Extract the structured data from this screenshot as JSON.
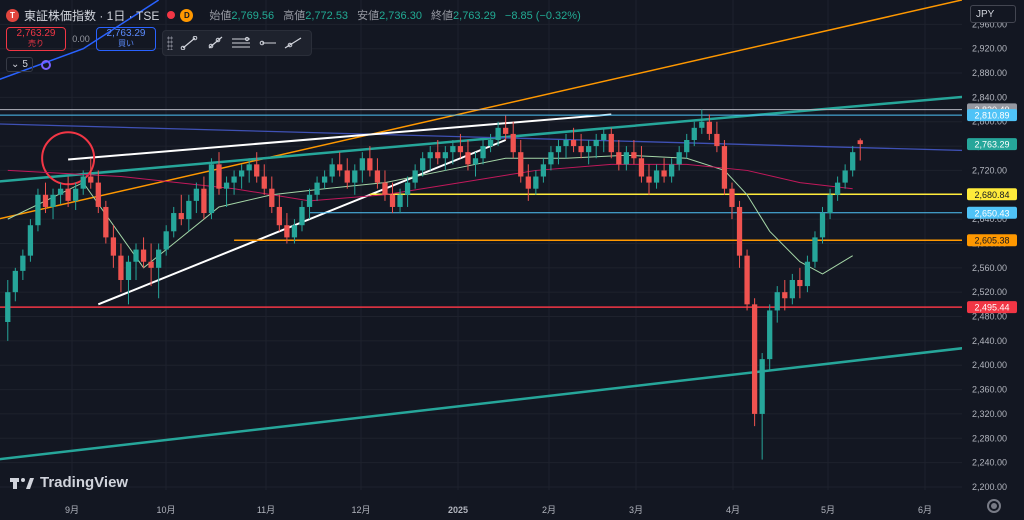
{
  "header": {
    "symbol": "東証株価指数 · 1日 · TSE",
    "open_label": "始値",
    "open": "2,769.56",
    "high_label": "高値",
    "high": "2,772.53",
    "low_label": "安値",
    "low": "2,736.30",
    "close_label": "終値",
    "close": "2,763.29",
    "change": "−8.85 (−0.32%)",
    "badge": "D",
    "symbol_icon": "T"
  },
  "trade": {
    "sell_price": "2,763.29",
    "sell_label": "売り",
    "spread": "0.00",
    "buy_price": "2,763.29",
    "buy_label": "買い"
  },
  "indicators": {
    "count": "5"
  },
  "currency": "JPY",
  "logo": "TradingView",
  "icons": {
    "symbol": "symbol-logo-icon",
    "status": "market-status-icon",
    "dropdown": "chevron-down-icon",
    "indicator": "indicator-icon",
    "gear": "gear-icon",
    "tools": [
      "trend-line-icon",
      "ray-icon",
      "extended-line-icon",
      "parallel-channel-icon",
      "horizontal-ray-icon",
      "horizontal-line-icon"
    ]
  },
  "colors": {
    "background": "#131722",
    "up": "#26a69a",
    "down": "#ef5350",
    "grid": "#363a45"
  },
  "chart_data": {
    "type": "candlestick",
    "ylim": [
      2195,
      3000
    ],
    "y_ticks": [
      2200,
      2240,
      2280,
      2320,
      2360,
      2400,
      2440,
      2480,
      2520,
      2560,
      2600,
      2640,
      2680,
      2720,
      2760,
      2800,
      2840,
      2880,
      2920,
      2960
    ],
    "x_labels": [
      "9月",
      "10月",
      "11月",
      "12月",
      "2025",
      "2月",
      "3月",
      "4月",
      "5月",
      "6月"
    ],
    "price_labels": [
      {
        "value": 2820.4,
        "text": "2,820.40",
        "color": "#9598a1"
      },
      {
        "value": 2810.89,
        "text": "2,810.89",
        "color": "#4fc3f7"
      },
      {
        "value": 2763.29,
        "text": "2,763.29",
        "color": "#26a69a"
      },
      {
        "value": 2680.84,
        "text": "2,680.84",
        "color": "#ffeb3b"
      },
      {
        "value": 2650.43,
        "text": "2,650.43",
        "color": "#4fc3f7"
      },
      {
        "value": 2605.38,
        "text": "2,605.38",
        "color": "#ff9800"
      },
      {
        "value": 2495.44,
        "text": "2,495.44",
        "color": "#f23645"
      }
    ],
    "candles": [
      [
        2471,
        2540,
        2440,
        2520
      ],
      [
        2520,
        2560,
        2505,
        2555
      ],
      [
        2555,
        2590,
        2540,
        2580
      ],
      [
        2580,
        2640,
        2570,
        2630
      ],
      [
        2630,
        2690,
        2620,
        2680
      ],
      [
        2680,
        2700,
        2650,
        2660
      ],
      [
        2660,
        2690,
        2640,
        2680
      ],
      [
        2680,
        2700,
        2665,
        2690
      ],
      [
        2690,
        2710,
        2660,
        2670
      ],
      [
        2670,
        2700,
        2655,
        2690
      ],
      [
        2690,
        2720,
        2680,
        2710
      ],
      [
        2710,
        2740,
        2690,
        2700
      ],
      [
        2700,
        2720,
        2650,
        2660
      ],
      [
        2660,
        2670,
        2600,
        2610
      ],
      [
        2610,
        2630,
        2560,
        2580
      ],
      [
        2580,
        2600,
        2520,
        2540
      ],
      [
        2540,
        2580,
        2500,
        2570
      ],
      [
        2570,
        2600,
        2540,
        2590
      ],
      [
        2590,
        2610,
        2560,
        2570
      ],
      [
        2570,
        2600,
        2530,
        2560
      ],
      [
        2560,
        2600,
        2510,
        2590
      ],
      [
        2590,
        2630,
        2580,
        2620
      ],
      [
        2620,
        2660,
        2610,
        2650
      ],
      [
        2650,
        2680,
        2630,
        2640
      ],
      [
        2640,
        2680,
        2620,
        2670
      ],
      [
        2670,
        2700,
        2650,
        2690
      ],
      [
        2690,
        2710,
        2640,
        2650
      ],
      [
        2650,
        2740,
        2640,
        2730
      ],
      [
        2730,
        2750,
        2680,
        2690
      ],
      [
        2690,
        2710,
        2660,
        2700
      ],
      [
        2700,
        2720,
        2680,
        2710
      ],
      [
        2710,
        2730,
        2690,
        2720
      ],
      [
        2720,
        2740,
        2700,
        2730
      ],
      [
        2730,
        2750,
        2700,
        2710
      ],
      [
        2710,
        2730,
        2680,
        2690
      ],
      [
        2690,
        2710,
        2650,
        2660
      ],
      [
        2660,
        2680,
        2620,
        2630
      ],
      [
        2630,
        2650,
        2600,
        2610
      ],
      [
        2610,
        2640,
        2600,
        2630
      ],
      [
        2630,
        2670,
        2620,
        2660
      ],
      [
        2660,
        2690,
        2640,
        2680
      ],
      [
        2680,
        2710,
        2670,
        2700
      ],
      [
        2700,
        2720,
        2690,
        2710
      ],
      [
        2710,
        2740,
        2700,
        2730
      ],
      [
        2730,
        2750,
        2710,
        2720
      ],
      [
        2720,
        2740,
        2690,
        2700
      ],
      [
        2700,
        2730,
        2680,
        2720
      ],
      [
        2720,
        2750,
        2700,
        2740
      ],
      [
        2740,
        2760,
        2710,
        2720
      ],
      [
        2720,
        2740,
        2690,
        2700
      ],
      [
        2700,
        2720,
        2670,
        2680
      ],
      [
        2680,
        2700,
        2650,
        2660
      ],
      [
        2660,
        2690,
        2650,
        2680
      ],
      [
        2680,
        2710,
        2660,
        2700
      ],
      [
        2700,
        2730,
        2690,
        2720
      ],
      [
        2720,
        2750,
        2710,
        2740
      ],
      [
        2740,
        2760,
        2720,
        2750
      ],
      [
        2750,
        2770,
        2730,
        2740
      ],
      [
        2740,
        2760,
        2720,
        2750
      ],
      [
        2750,
        2770,
        2730,
        2760
      ],
      [
        2760,
        2780,
        2740,
        2750
      ],
      [
        2750,
        2770,
        2720,
        2730
      ],
      [
        2730,
        2750,
        2710,
        2740
      ],
      [
        2740,
        2770,
        2730,
        2760
      ],
      [
        2760,
        2780,
        2750,
        2770
      ],
      [
        2770,
        2800,
        2760,
        2790
      ],
      [
        2790,
        2810,
        2770,
        2780
      ],
      [
        2780,
        2800,
        2740,
        2750
      ],
      [
        2750,
        2770,
        2700,
        2710
      ],
      [
        2710,
        2730,
        2670,
        2690
      ],
      [
        2690,
        2720,
        2680,
        2710
      ],
      [
        2710,
        2740,
        2700,
        2730
      ],
      [
        2730,
        2760,
        2720,
        2750
      ],
      [
        2750,
        2770,
        2730,
        2760
      ],
      [
        2760,
        2780,
        2740,
        2770
      ],
      [
        2770,
        2790,
        2750,
        2760
      ],
      [
        2760,
        2780,
        2740,
        2750
      ],
      [
        2750,
        2770,
        2730,
        2760
      ],
      [
        2760,
        2780,
        2740,
        2770
      ],
      [
        2770,
        2790,
        2750,
        2780
      ],
      [
        2780,
        2790,
        2740,
        2750
      ],
      [
        2750,
        2770,
        2720,
        2730
      ],
      [
        2730,
        2760,
        2720,
        2750
      ],
      [
        2750,
        2770,
        2730,
        2740
      ],
      [
        2740,
        2760,
        2700,
        2710
      ],
      [
        2710,
        2730,
        2680,
        2700
      ],
      [
        2700,
        2730,
        2690,
        2720
      ],
      [
        2720,
        2740,
        2700,
        2710
      ],
      [
        2710,
        2740,
        2700,
        2730
      ],
      [
        2730,
        2760,
        2720,
        2750
      ],
      [
        2750,
        2780,
        2740,
        2770
      ],
      [
        2770,
        2800,
        2760,
        2790
      ],
      [
        2790,
        2820,
        2780,
        2800
      ],
      [
        2800,
        2812,
        2770,
        2780
      ],
      [
        2780,
        2800,
        2750,
        2760
      ],
      [
        2760,
        2770,
        2680,
        2690
      ],
      [
        2690,
        2700,
        2640,
        2660
      ],
      [
        2660,
        2670,
        2560,
        2580
      ],
      [
        2580,
        2590,
        2490,
        2500
      ],
      [
        2500,
        2510,
        2300,
        2320
      ],
      [
        2320,
        2420,
        2245,
        2410
      ],
      [
        2410,
        2500,
        2390,
        2490
      ],
      [
        2490,
        2530,
        2470,
        2520
      ],
      [
        2520,
        2540,
        2490,
        2510
      ],
      [
        2510,
        2550,
        2500,
        2540
      ],
      [
        2540,
        2560,
        2510,
        2530
      ],
      [
        2530,
        2580,
        2520,
        2570
      ],
      [
        2570,
        2620,
        2560,
        2610
      ],
      [
        2610,
        2660,
        2600,
        2650
      ],
      [
        2650,
        2690,
        2640,
        2680
      ],
      [
        2680,
        2710,
        2670,
        2700
      ],
      [
        2700,
        2730,
        2690,
        2720
      ],
      [
        2720,
        2760,
        2710,
        2750
      ],
      [
        2769.56,
        2772.53,
        2736.3,
        2763.29
      ]
    ],
    "ma_short": [
      [
        0,
        2640
      ],
      [
        10,
        2700
      ],
      [
        18,
        2560
      ],
      [
        22,
        2600
      ],
      [
        28,
        2660
      ],
      [
        35,
        2680
      ],
      [
        42,
        2690
      ],
      [
        50,
        2700
      ],
      [
        58,
        2720
      ],
      [
        66,
        2740
      ],
      [
        74,
        2740
      ],
      [
        82,
        2745
      ],
      [
        90,
        2740
      ],
      [
        95,
        2720
      ],
      [
        98,
        2680
      ],
      [
        101,
        2620
      ],
      [
        105,
        2570
      ],
      [
        108,
        2550
      ],
      [
        112,
        2580
      ]
    ],
    "ma_long": [
      [
        0,
        2720
      ],
      [
        15,
        2710
      ],
      [
        30,
        2690
      ],
      [
        40,
        2670
      ],
      [
        50,
        2680
      ],
      [
        60,
        2700
      ],
      [
        70,
        2720
      ],
      [
        80,
        2730
      ],
      [
        90,
        2730
      ],
      [
        98,
        2720
      ],
      [
        105,
        2700
      ],
      [
        112,
        2690
      ]
    ],
    "lines": [
      {
        "color": "#2962ff",
        "p": [
          [
            -12,
            2820
          ],
          [
            10,
            2920
          ],
          [
            20,
            3000
          ]
        ]
      },
      {
        "color": "#ff9800",
        "p": [
          [
            -12,
            2610
          ],
          [
            130,
            3010
          ]
        ]
      },
      {
        "color": "#26a69a",
        "w": 2.5,
        "p": [
          [
            -12,
            2690
          ],
          [
            135,
            2850
          ]
        ]
      },
      {
        "color": "#26a69a",
        "w": 2.5,
        "p": [
          [
            -12,
            2230
          ],
          [
            135,
            2440
          ]
        ]
      },
      {
        "color": "#3f51b5",
        "w": 1.3,
        "p": [
          [
            -12,
            2800
          ],
          [
            135,
            2750
          ]
        ]
      },
      {
        "color": "#ffffff",
        "w": 2,
        "p": [
          [
            12,
            2500
          ],
          [
            66,
            2770
          ]
        ]
      },
      {
        "color": "#ffffff",
        "w": 2,
        "p": [
          [
            8,
            2738
          ],
          [
            80,
            2812
          ]
        ]
      },
      {
        "color": "#b2b5be",
        "w": 1,
        "p": [
          [
            -12,
            2820
          ],
          [
            135,
            2820
          ]
        ]
      },
      {
        "color": "#4fc3f7",
        "w": 1,
        "p": [
          [
            -12,
            2810.89
          ],
          [
            135,
            2810.89
          ]
        ]
      },
      {
        "color": "#ffeb3b",
        "w": 1.5,
        "p": [
          [
            48,
            2680.84
          ],
          [
            135,
            2680.84
          ]
        ]
      },
      {
        "color": "#4fc3f7",
        "w": 1,
        "p": [
          [
            40,
            2650.43
          ],
          [
            135,
            2650.43
          ]
        ]
      },
      {
        "color": "#ff9800",
        "w": 1.5,
        "p": [
          [
            30,
            2605.38
          ],
          [
            135,
            2605.38
          ]
        ]
      },
      {
        "color": "#f23645",
        "w": 1.5,
        "p": [
          [
            -12,
            2495.44
          ],
          [
            135,
            2495.44
          ]
        ]
      }
    ],
    "circle": {
      "x": 8,
      "y": 2740,
      "r": 26
    }
  }
}
